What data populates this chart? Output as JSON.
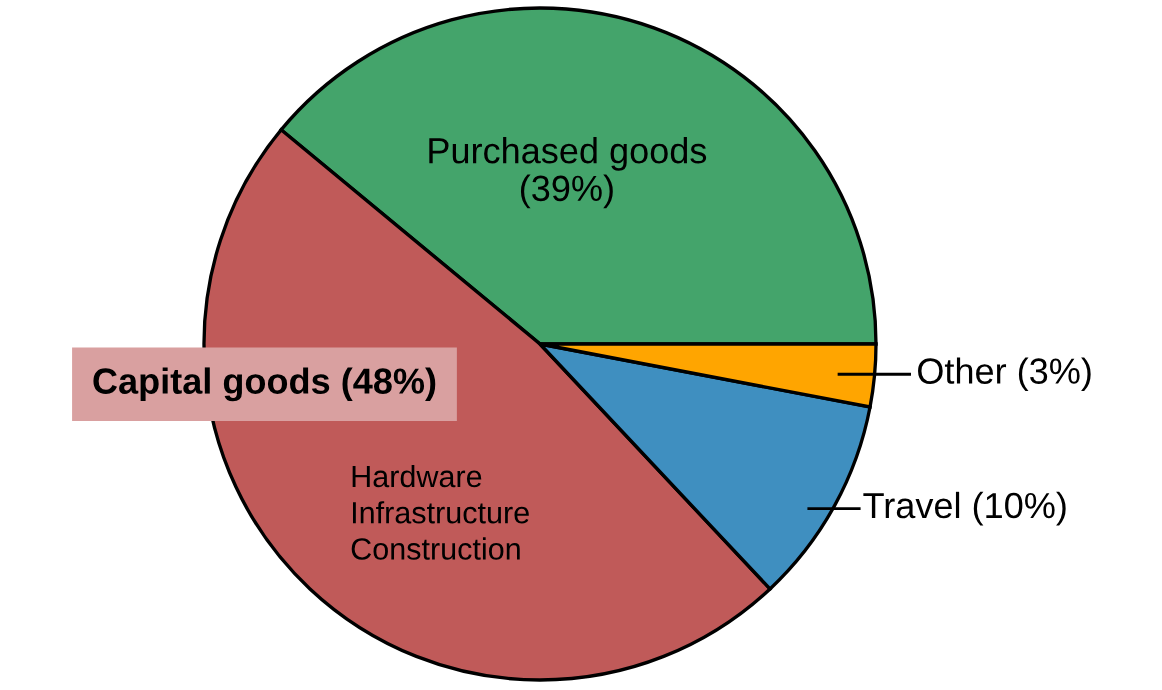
{
  "chart_data": {
    "type": "pie",
    "categories": [
      "Purchased goods",
      "Capital goods",
      "Travel",
      "Other"
    ],
    "values": [
      39,
      48,
      10,
      3
    ],
    "value_labels": [
      "(39%)",
      "(48%)",
      "(10%)",
      "(3%)"
    ],
    "colors": [
      "#44a46b",
      "#c05a59",
      "#3f8fc0",
      "#ffa500"
    ],
    "annotations": [
      "Hardware\nInfrastructure\nConstruction"
    ],
    "legend": false
  }
}
